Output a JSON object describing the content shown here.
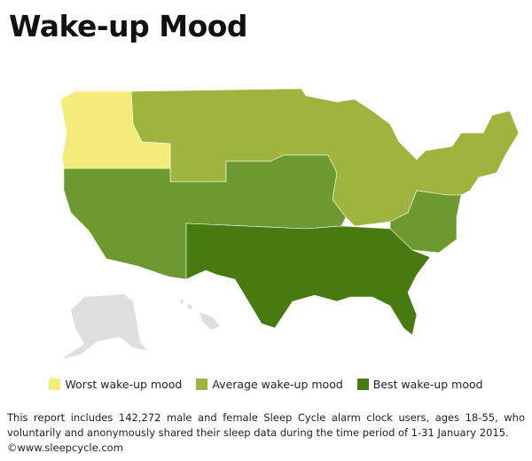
{
  "title": "Wake-up Mood",
  "legend": {
    "items": [
      {
        "label": "Worst wake-up mood",
        "color": "#f3ec7b"
      },
      {
        "label": "Average wake-up mood",
        "color": "#9db53f"
      },
      {
        "label": "Best wake-up mood",
        "color": "#477a0f"
      }
    ]
  },
  "footnote": {
    "text": "This report includes 142,272 male and female Sleep Cycle alarm clock users, ages 18-55, who voluntarily and anonymously shared their sleep data during the time period of 1-31 January 2015.",
    "source": "©www.sleepcycle.com"
  }
}
